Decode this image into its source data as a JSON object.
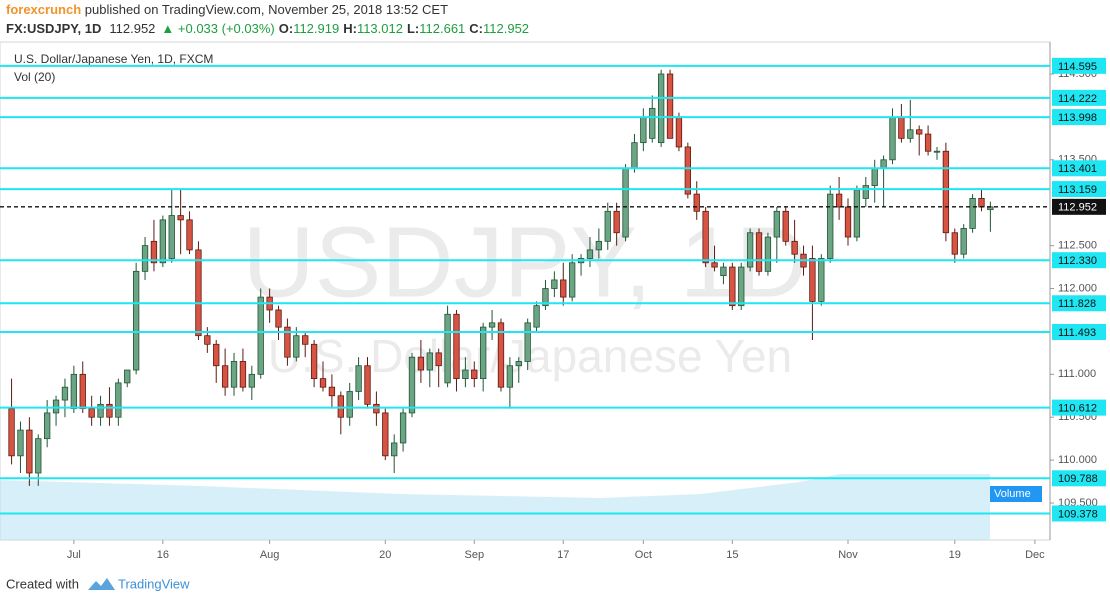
{
  "header": {
    "author": "forexcrunch",
    "published": " published on TradingView.com, November 25, 2018 13:52 CET",
    "symbol": "FX:USDJPY, 1D",
    "last": "112.952",
    "change": "▲ +0.033 (+0.03%)",
    "quote": [
      {
        "label": "O:",
        "value": "112.919"
      },
      {
        "label": "H:",
        "value": "113.012"
      },
      {
        "label": "L:",
        "value": "112.661"
      },
      {
        "label": "C:",
        "value": "112.952"
      }
    ]
  },
  "chart_data": {
    "type": "candlestick",
    "title": "U.S. Dollar/Japanese Yen, 1D, FXCM",
    "subtitle": "Vol (20)",
    "watermark_title": "USDJPY, 1D",
    "watermark_subtitle": "U.S. Dollar/Japanese Yen",
    "volume_label": "Volume",
    "up_color": "#6ba583",
    "down_color": "#d75442",
    "level_color": "#1ee6f2",
    "open": [
      110.6,
      110.05,
      110.35,
      109.85,
      110.25,
      110.55,
      110.7,
      110.6,
      111.0,
      110.6,
      110.5,
      110.65,
      110.5,
      110.9,
      111.05,
      112.2,
      112.55,
      112.3,
      112.35,
      112.85,
      112.8,
      112.45,
      111.45,
      111.35,
      111.1,
      110.85,
      111.15,
      110.85,
      111.0,
      111.9,
      111.75,
      111.55,
      111.2,
      111.45,
      111.35,
      110.95,
      110.85,
      110.75,
      110.5,
      110.8,
      111.1,
      110.65,
      110.55,
      110.05,
      110.2,
      110.55,
      111.2,
      111.05,
      111.25,
      110.9,
      111.7,
      110.95,
      111.05,
      110.95,
      111.55,
      111.6,
      110.85,
      111.1,
      111.15,
      111.55,
      111.8,
      112.0,
      112.1,
      111.9,
      112.3,
      112.35,
      112.45,
      112.55,
      112.9,
      112.6,
      113.4,
      113.7,
      113.75,
      113.7,
      114.5,
      114.0,
      113.65,
      113.1,
      112.9,
      112.3,
      112.15,
      112.25,
      111.8,
      112.25,
      112.65,
      112.2,
      112.6,
      112.9,
      112.55,
      112.4,
      112.35,
      111.85,
      112.35,
      113.1,
      112.95,
      112.6,
      113.05,
      113.2,
      113.4,
      113.5,
      114.0,
      113.75,
      113.85,
      113.8,
      113.6,
      113.6,
      112.65,
      112.4,
      112.7,
      113.05,
      112.919
    ],
    "high": [
      110.95,
      110.45,
      110.5,
      110.3,
      110.7,
      110.75,
      110.95,
      111.1,
      111.15,
      110.75,
      110.75,
      110.85,
      110.95,
      111.05,
      112.3,
      112.6,
      112.8,
      112.85,
      113.15,
      113.15,
      112.9,
      112.55,
      111.55,
      111.4,
      111.3,
      111.25,
      111.3,
      111.1,
      112.0,
      112.0,
      111.8,
      111.65,
      111.55,
      111.5,
      111.4,
      111.15,
      111.0,
      110.8,
      110.9,
      111.2,
      111.2,
      110.8,
      110.6,
      110.3,
      110.6,
      111.25,
      111.4,
      111.3,
      111.3,
      111.8,
      111.75,
      111.2,
      111.15,
      111.6,
      111.75,
      111.65,
      111.2,
      111.2,
      111.65,
      111.85,
      112.1,
      112.2,
      112.3,
      112.4,
      112.4,
      112.6,
      112.7,
      113.0,
      113.0,
      113.45,
      113.8,
      114.1,
      114.25,
      114.55,
      114.55,
      114.05,
      113.7,
      113.25,
      112.95,
      112.5,
      112.3,
      112.3,
      112.3,
      112.7,
      112.7,
      112.65,
      112.95,
      112.95,
      112.8,
      112.5,
      112.5,
      112.4,
      113.2,
      113.3,
      113.05,
      113.2,
      113.3,
      113.5,
      113.55,
      114.1,
      114.15,
      114.2,
      113.9,
      113.9,
      113.65,
      113.7,
      112.7,
      112.75,
      113.1,
      113.15,
      113.012
    ],
    "low": [
      109.95,
      109.85,
      109.7,
      109.7,
      110.15,
      110.4,
      110.5,
      110.55,
      110.55,
      110.4,
      110.4,
      110.4,
      110.4,
      110.85,
      111.0,
      112.1,
      112.2,
      112.25,
      112.3,
      112.4,
      112.4,
      111.4,
      111.25,
      110.9,
      110.75,
      110.75,
      110.8,
      110.7,
      110.95,
      111.6,
      111.4,
      111.1,
      111.15,
      111.2,
      110.85,
      110.8,
      110.6,
      110.3,
      110.4,
      110.7,
      110.6,
      110.4,
      110.0,
      109.85,
      110.1,
      110.5,
      110.9,
      110.85,
      110.85,
      110.85,
      110.8,
      110.85,
      110.85,
      110.8,
      111.4,
      110.8,
      110.6,
      110.9,
      111.05,
      111.5,
      111.75,
      111.9,
      111.8,
      111.85,
      112.15,
      112.25,
      112.35,
      112.45,
      112.5,
      112.55,
      113.35,
      113.6,
      113.7,
      113.65,
      113.75,
      113.6,
      113.05,
      112.8,
      112.25,
      112.2,
      112.05,
      111.75,
      111.75,
      112.2,
      112.15,
      112.15,
      112.3,
      112.5,
      112.3,
      112.15,
      111.4,
      111.8,
      112.3,
      112.8,
      112.5,
      112.55,
      112.95,
      113.0,
      112.95,
      113.45,
      113.7,
      113.7,
      113.55,
      113.55,
      113.5,
      112.55,
      112.3,
      112.35,
      112.65,
      112.9,
      112.661
    ],
    "close": [
      110.05,
      110.35,
      109.85,
      110.25,
      110.55,
      110.7,
      110.85,
      111.0,
      110.6,
      110.5,
      110.65,
      110.5,
      110.9,
      111.05,
      112.2,
      112.5,
      112.3,
      112.8,
      112.85,
      112.8,
      112.45,
      111.45,
      111.35,
      111.1,
      110.85,
      111.15,
      110.85,
      111.0,
      111.9,
      111.75,
      111.55,
      111.2,
      111.45,
      111.35,
      110.95,
      110.85,
      110.75,
      110.5,
      110.8,
      111.1,
      110.65,
      110.55,
      110.05,
      110.2,
      110.55,
      111.2,
      111.05,
      111.25,
      111.1,
      111.7,
      110.95,
      111.05,
      110.95,
      111.55,
      111.6,
      110.85,
      111.1,
      111.15,
      111.6,
      111.8,
      112.0,
      112.1,
      111.9,
      112.3,
      112.35,
      112.45,
      112.55,
      112.9,
      112.65,
      113.4,
      113.7,
      114.0,
      114.1,
      114.5,
      113.75,
      113.65,
      113.1,
      112.9,
      112.3,
      112.25,
      112.25,
      111.8,
      112.25,
      112.65,
      112.2,
      112.6,
      112.9,
      112.55,
      112.4,
      112.25,
      111.85,
      112.35,
      113.1,
      112.95,
      112.6,
      113.15,
      113.2,
      113.4,
      113.5,
      114.0,
      113.75,
      113.85,
      113.8,
      113.6,
      113.6,
      112.65,
      112.4,
      112.7,
      113.05,
      112.95,
      112.952
    ],
    "xlim": [
      -1.3,
      116.7
    ],
    "xticks": [
      {
        "value": 7,
        "label": "Jul"
      },
      {
        "value": 17,
        "label": "16"
      },
      {
        "value": 29,
        "label": "Aug"
      },
      {
        "value": 42,
        "label": "20"
      },
      {
        "value": 52,
        "label": "Sep"
      },
      {
        "value": 62,
        "label": "17"
      },
      {
        "value": 71,
        "label": "Oct"
      },
      {
        "value": 81,
        "label": "15"
      },
      {
        "value": 94,
        "label": "Nov"
      },
      {
        "value": 106,
        "label": "19"
      },
      {
        "value": 115,
        "label": "Dec"
      }
    ],
    "ylim": [
      109.069,
      114.873
    ],
    "yticks": [
      {
        "value": 114.5,
        "label": "114.500"
      },
      {
        "value": 113.5,
        "label": "113.500"
      },
      {
        "value": 112.5,
        "label": "112.500"
      },
      {
        "value": 112,
        "label": "112.000"
      },
      {
        "value": 111,
        "label": "111.000"
      },
      {
        "value": 110.5,
        "label": "110.500"
      },
      {
        "value": 110,
        "label": "110.000"
      },
      {
        "value": 109.5,
        "label": "109.500"
      }
    ],
    "levels": [
      114.595,
      114.222,
      113.998,
      113.401,
      113.159,
      {
        "value": 112.33,
        "label": "112.330"
      },
      111.828,
      111.493,
      110.612,
      109.788,
      109.378
    ],
    "last_price": 112.952,
    "grid": false
  },
  "footer": {
    "created": "Created with",
    "brand": "TradingView"
  }
}
